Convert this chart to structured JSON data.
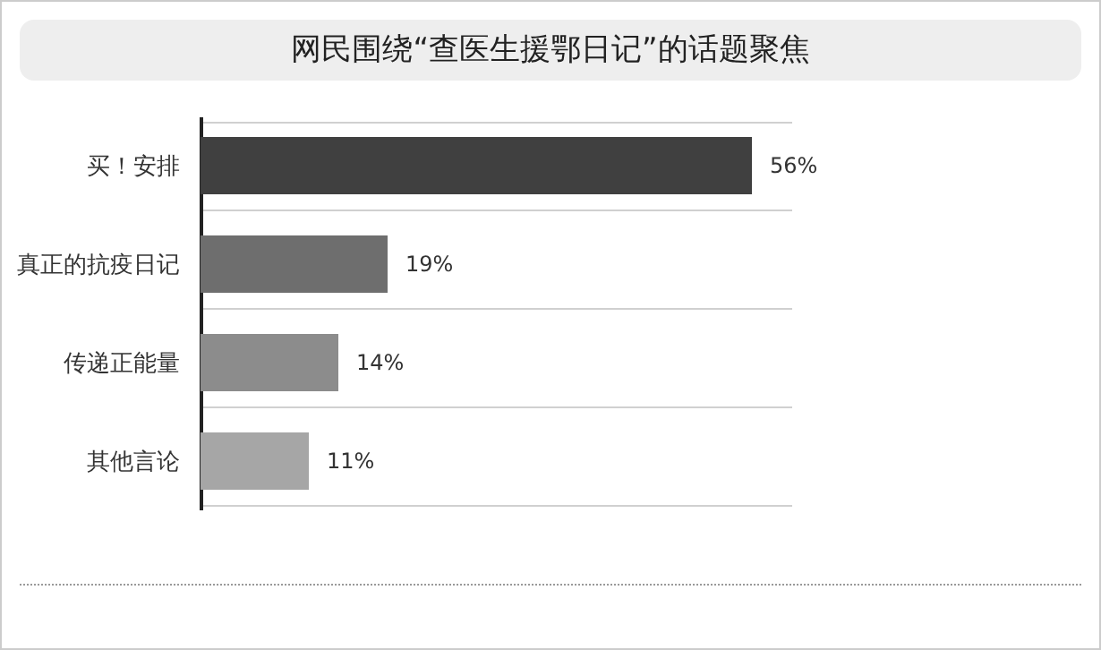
{
  "chart_data": {
    "type": "bar",
    "orientation": "horizontal",
    "title": "网民围绕“查医生援鄂日记”的话题聚焦",
    "categories": [
      "买！安排",
      "真正的抗疫日记",
      "传递正能量",
      "其他言论"
    ],
    "values": [
      56,
      19,
      14,
      11
    ],
    "value_labels": [
      "56%",
      "19%",
      "14%",
      "11%"
    ],
    "colors": [
      "#404040",
      "#6e6e6e",
      "#8c8c8c",
      "#a6a6a6"
    ],
    "grid": "y",
    "tick_labels": "y"
  }
}
